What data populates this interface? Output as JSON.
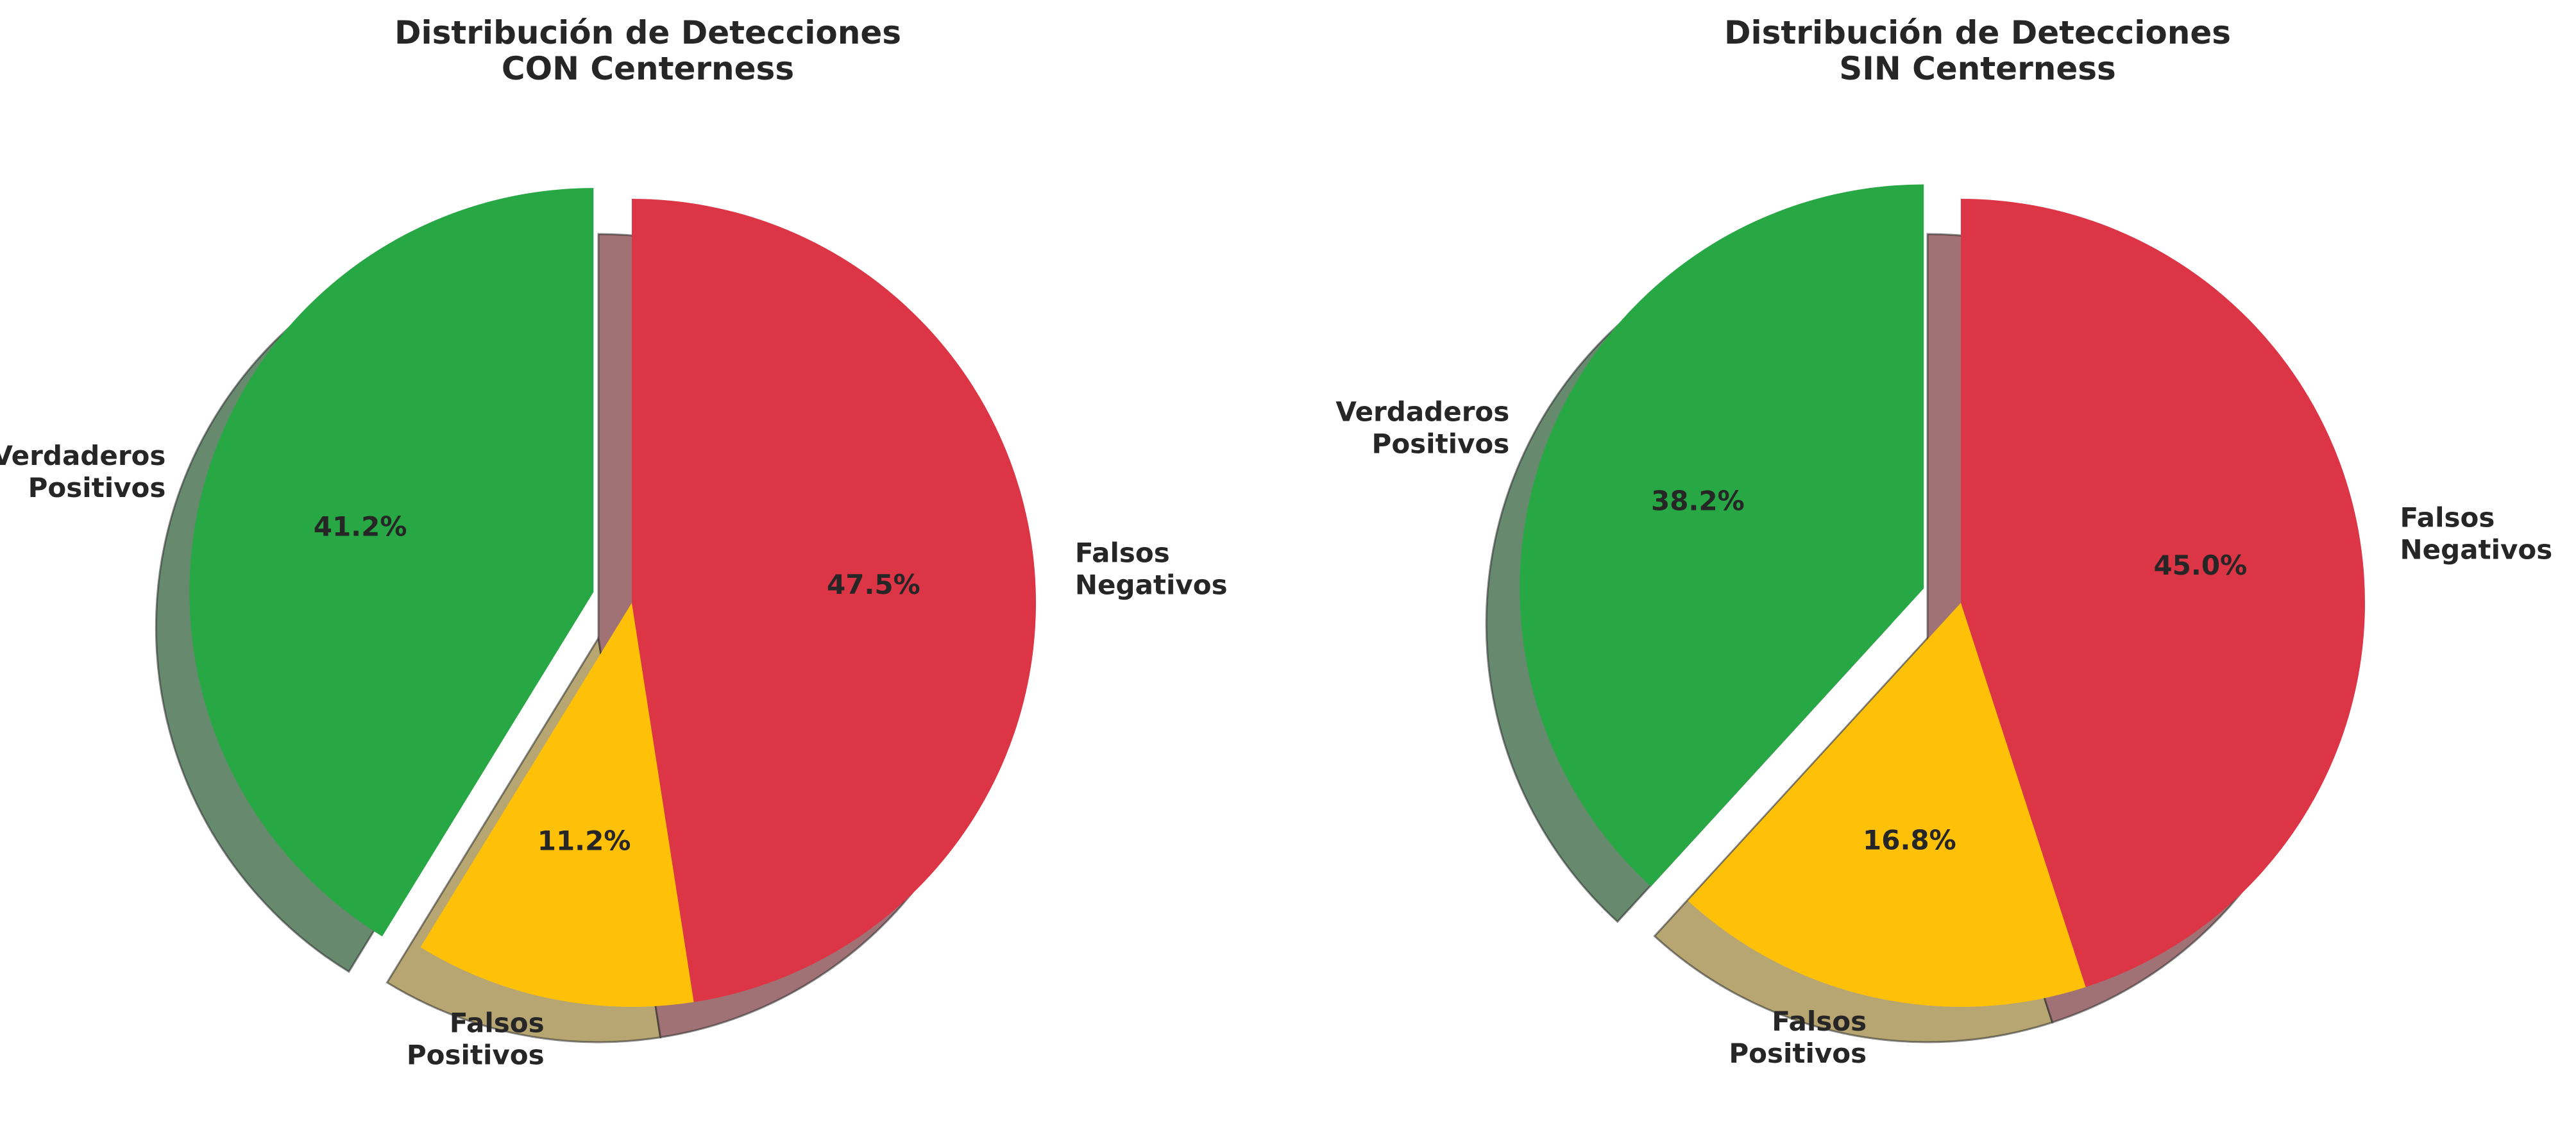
{
  "chart_data": [
    {
      "type": "pie",
      "title_lines": [
        "Distribución de Detecciones",
        "CON Centerness"
      ],
      "slices": [
        {
          "label_lines": [
            "Verdaderos",
            "Positivos"
          ],
          "value": 41.2,
          "pct_text": "41.2%",
          "color": "#28a745",
          "exploded": true
        },
        {
          "label_lines": [
            "Falsos",
            "Positivos"
          ],
          "value": 11.2,
          "pct_text": "11.2%",
          "color": "#ffc107",
          "exploded": false
        },
        {
          "label_lines": [
            "Falsos",
            "Negativos"
          ],
          "value": 47.5,
          "pct_text": "47.5%",
          "color": "#dc3545",
          "exploded": false
        }
      ],
      "start_angle_deg": 90,
      "direction": "counterclockwise",
      "shadow": true
    },
    {
      "type": "pie",
      "title_lines": [
        "Distribución de Detecciones",
        "SIN Centerness"
      ],
      "slices": [
        {
          "label_lines": [
            "Verdaderos",
            "Positivos"
          ],
          "value": 38.2,
          "pct_text": "38.2%",
          "color": "#28a745",
          "exploded": true
        },
        {
          "label_lines": [
            "Falsos",
            "Positivos"
          ],
          "value": 16.8,
          "pct_text": "16.8%",
          "color": "#ffc107",
          "exploded": false
        },
        {
          "label_lines": [
            "Falsos",
            "Negativos"
          ],
          "value": 45.0,
          "pct_text": "45.0%",
          "color": "#dc3545",
          "exploded": false
        }
      ],
      "start_angle_deg": 90,
      "direction": "counterclockwise",
      "shadow": true
    }
  ]
}
